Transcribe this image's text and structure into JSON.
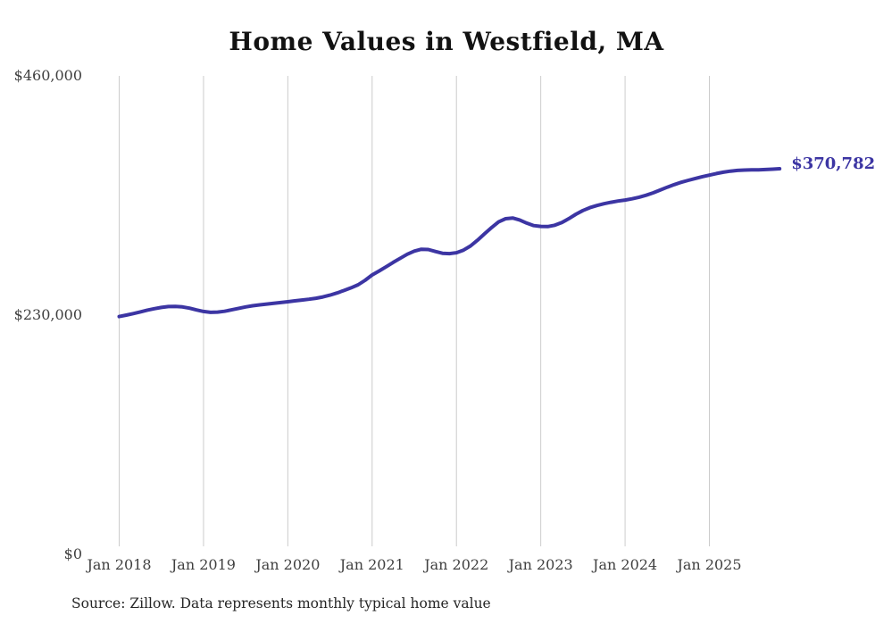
{
  "chart": {
    "title": "Home Values in Westfield, MA",
    "end_label": "$370,782"
  },
  "footer": {
    "source": "Source: Zillow. Data represents monthly typical home value"
  },
  "chart_data": {
    "type": "line",
    "title": "Home Values in Westfield, MA",
    "series_name": "Monthly typical home value (USD)",
    "x_start": "Jan 2018",
    "x_end": "Nov 2025",
    "x_cadence": "monthly",
    "x_tick_labels": [
      "Jan 2018",
      "Jan 2019",
      "Jan 2020",
      "Jan 2021",
      "Jan 2022",
      "Jan 2023",
      "Jan 2024",
      "Jan 2025"
    ],
    "y_ticks": [
      {
        "label": "$0",
        "value": 0
      },
      {
        "label": "$230,000",
        "value": 230000
      },
      {
        "label": "$460,000",
        "value": 460000
      }
    ],
    "ylim": [
      0,
      460000
    ],
    "grid": "vertical-only",
    "line_color": "#3c35a3",
    "grid_color": "#cccccc",
    "axis_label_color": "#404040",
    "final_value": 370782,
    "end_label": "$370,782",
    "values": [
      228600,
      230000,
      231500,
      233100,
      234800,
      236200,
      237400,
      238200,
      238400,
      237900,
      236700,
      235000,
      233500,
      232700,
      232900,
      233700,
      235100,
      236500,
      237900,
      239000,
      239900,
      240600,
      241300,
      242100,
      242900,
      243700,
      244500,
      245300,
      246200,
      247500,
      249200,
      251300,
      253700,
      256300,
      259200,
      263500,
      268600,
      272500,
      276500,
      280700,
      284700,
      288500,
      291500,
      293300,
      293100,
      291200,
      289500,
      289100,
      290000,
      292500,
      296500,
      302000,
      308200,
      314200,
      319600,
      322700,
      323400,
      321500,
      318500,
      316100,
      315300,
      315100,
      316400,
      319000,
      322800,
      327000,
      330600,
      333300,
      335400,
      337100,
      338500,
      339700,
      340600,
      341800,
      343400,
      345300,
      347600,
      350200,
      353000,
      355500,
      357700,
      359600,
      361400,
      363100,
      364600,
      366100,
      367400,
      368400,
      369100,
      369500,
      369600,
      369700,
      370000,
      370300,
      370782
    ]
  }
}
